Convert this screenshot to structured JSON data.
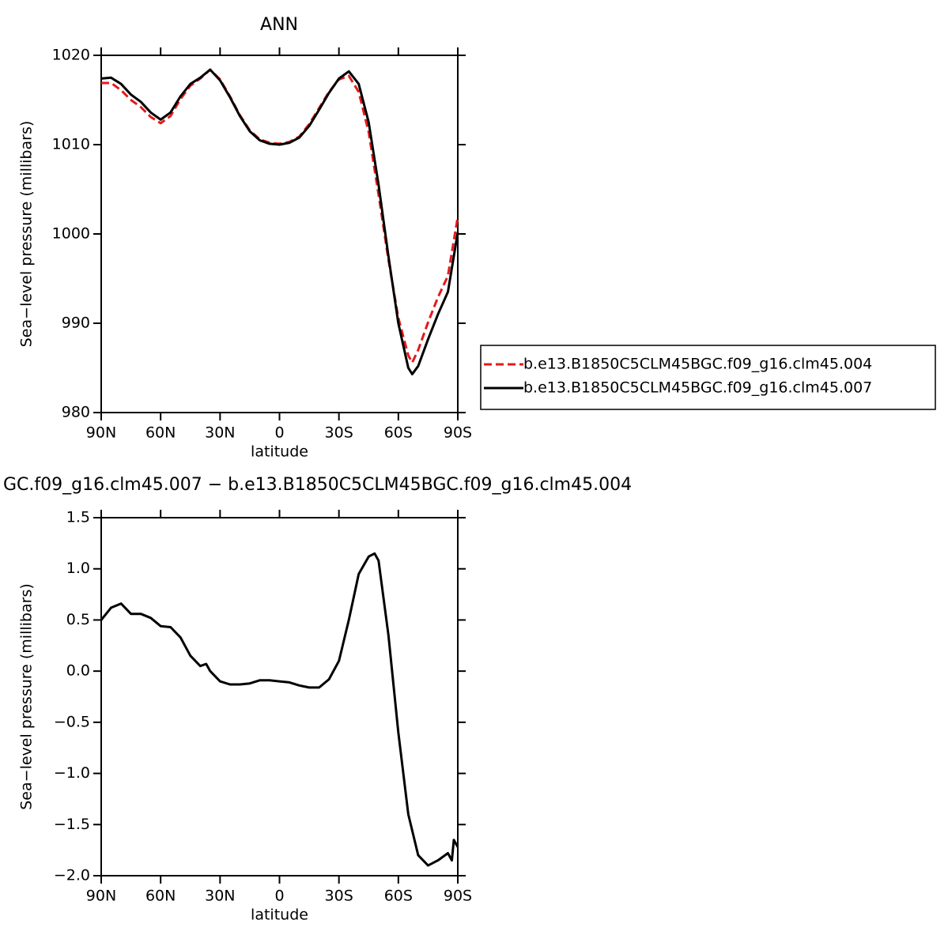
{
  "chart_data": [
    {
      "type": "line",
      "title": "ANN",
      "xlabel": "latitude",
      "ylabel": "Sea−level pressure (millibars)",
      "x": [
        90,
        85,
        80,
        75,
        70,
        65,
        60,
        55,
        50,
        45,
        40,
        35,
        30,
        25,
        20,
        15,
        10,
        5,
        0,
        -5,
        -10,
        -15,
        -20,
        -25,
        -30,
        -35,
        -40,
        -45,
        -50,
        -55,
        -60,
        -65,
        -67,
        -70,
        -75,
        -80,
        -85,
        -90
      ],
      "series": [
        {
          "name": "b.e13.B1850C5CLM45BGC.f09_g16.clm45.004",
          "color": "#e41a1c",
          "line_style": "dashed",
          "values": [
            1016.9,
            1016.9,
            1016.1,
            1015.0,
            1014.2,
            1013.1,
            1012.4,
            1013.2,
            1015.1,
            1016.6,
            1017.4,
            1018.4,
            1017.3,
            1015.4,
            1013.3,
            1011.6,
            1010.6,
            1010.2,
            1010.1,
            1010.3,
            1010.9,
            1012.3,
            1014.1,
            1015.9,
            1017.3,
            1017.7,
            1015.9,
            1011.4,
            1004.4,
            997.1,
            990.6,
            986.4,
            985.6,
            987.0,
            990.1,
            992.9,
            995.3,
            1001.9
          ]
        },
        {
          "name": "b.e13.B1850C5CLM45BGC.f09_g16.clm45.007",
          "color": "#000000",
          "line_style": "solid",
          "values": [
            1017.4,
            1017.5,
            1016.8,
            1015.6,
            1014.8,
            1013.6,
            1012.8,
            1013.6,
            1015.4,
            1016.8,
            1017.5,
            1018.4,
            1017.2,
            1015.3,
            1013.2,
            1011.5,
            1010.5,
            1010.1,
            1010.0,
            1010.2,
            1010.8,
            1012.1,
            1013.9,
            1015.8,
            1017.4,
            1018.2,
            1016.8,
            1012.5,
            1005.5,
            997.5,
            990.0,
            985.0,
            984.3,
            985.2,
            988.2,
            991.0,
            993.5,
            1000.2
          ]
        }
      ],
      "xlim": [
        90,
        -90
      ],
      "xticks": [
        {
          "value": 90,
          "label": "90N"
        },
        {
          "value": 60,
          "label": "60N"
        },
        {
          "value": 30,
          "label": "30N"
        },
        0,
        {
          "value": -30,
          "label": "30S"
        },
        {
          "value": -60,
          "label": "60S"
        },
        {
          "value": -90,
          "label": "90S"
        }
      ],
      "ylim": [
        980,
        1020
      ],
      "yticks": [
        980,
        990,
        1000,
        1010,
        1020
      ],
      "legend": "outside-right"
    },
    {
      "type": "line",
      "title": "GC.f09_g16.clm45.007 − b.e13.B1850C5CLM45BGC.f09_g16.clm45.004",
      "xlabel": "latitude",
      "ylabel": "Sea−level pressure (millibars)",
      "x": [
        90,
        85,
        80,
        75,
        70,
        65,
        60,
        55,
        50,
        45,
        40,
        37,
        35,
        30,
        25,
        20,
        15,
        10,
        5,
        0,
        -5,
        -10,
        -15,
        -20,
        -25,
        -30,
        -35,
        -40,
        -45,
        -48,
        -50,
        -55,
        -60,
        -65,
        -70,
        -75,
        -80,
        -85,
        -87,
        -88,
        -90
      ],
      "values": [
        0.5,
        0.62,
        0.66,
        0.56,
        0.56,
        0.52,
        0.44,
        0.43,
        0.33,
        0.15,
        0.05,
        0.07,
        0.0,
        -0.1,
        -0.13,
        -0.13,
        -0.12,
        -0.09,
        -0.09,
        -0.1,
        -0.11,
        -0.14,
        -0.16,
        -0.16,
        -0.08,
        0.1,
        0.5,
        0.95,
        1.12,
        1.15,
        1.08,
        0.35,
        -0.6,
        -1.4,
        -1.8,
        -1.9,
        -1.85,
        -1.78,
        -1.85,
        -1.65,
        -1.72
      ],
      "color": "#000000",
      "xlim": [
        90,
        -90
      ],
      "xticks": [
        {
          "value": 90,
          "label": "90N"
        },
        {
          "value": 60,
          "label": "60N"
        },
        {
          "value": 30,
          "label": "30N"
        },
        0,
        {
          "value": -30,
          "label": "30S"
        },
        {
          "value": -60,
          "label": "60S"
        },
        {
          "value": -90,
          "label": "90S"
        }
      ],
      "ylim": [
        -2.0,
        1.5
      ],
      "yticks": [
        {
          "value": -2.0,
          "label": "−2.0"
        },
        {
          "value": -1.5,
          "label": "−1.5"
        },
        {
          "value": -1.0,
          "label": "−1.0"
        },
        {
          "value": -0.5,
          "label": "−0.5"
        },
        {
          "value": 0.0,
          "label": "0.0"
        },
        0.5,
        {
          "value": 1.0,
          "label": "1.0"
        },
        1.5
      ]
    }
  ]
}
